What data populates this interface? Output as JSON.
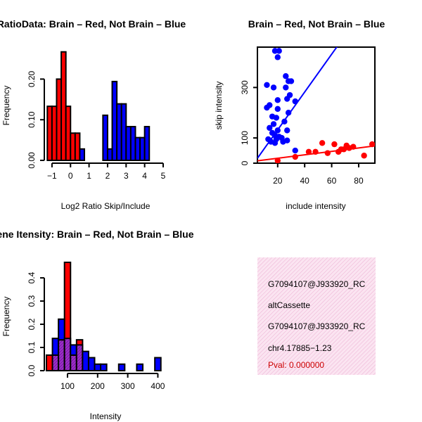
{
  "chart_data": [
    {
      "id": "ratio",
      "type": "bar",
      "title": "RatioData: Brain – Red, Not Brain – Blue",
      "xlabel": "Log2 Ratio Skip/Include",
      "ylabel": "Frequency",
      "xlim": [
        -1.3,
        5
      ],
      "ylim": [
        0,
        0.27
      ],
      "xticks": [
        -1,
        0,
        1,
        2,
        3,
        4,
        5
      ],
      "xtick_labels": [
        "−1",
        "0",
        "1",
        "2",
        "3",
        "4",
        "5"
      ],
      "yticks": [
        0,
        0.1,
        0.2
      ],
      "ytick_labels": [
        "0.00",
        "0.10",
        "0.20"
      ],
      "series": [
        {
          "name": "Brain",
          "color": "#ff0000",
          "bin_starts": [
            -1.25,
            -1.0,
            -0.75,
            -0.5,
            -0.25,
            0.0,
            0.25,
            0.5
          ],
          "bin_width": 0.25,
          "values": [
            0.133,
            0.133,
            0.2,
            0.267,
            0.133,
            0.067,
            0.067,
            0.0
          ]
        },
        {
          "name": "Not Brain",
          "color": "#0000ff",
          "bin_starts": [
            0.5,
            1.75,
            2.0,
            2.25,
            2.5,
            2.75,
            3.0,
            3.25,
            3.5,
            3.75,
            4.0,
            4.25,
            4.5
          ],
          "bin_width": 0.25,
          "values": [
            0.028,
            0.111,
            0.028,
            0.194,
            0.139,
            0.139,
            0.083,
            0.083,
            0.056,
            0.056,
            0.083,
            0.0,
            0.0
          ]
        }
      ]
    },
    {
      "id": "scatter",
      "type": "scatter",
      "title": "Brain – Red, Not Brain – Blue",
      "xlabel": "include intensity",
      "ylabel": "skip intensity",
      "xlim": [
        5,
        92
      ],
      "ylim": [
        0,
        460
      ],
      "xticks": [
        20,
        40,
        60,
        80
      ],
      "yticks": [
        0,
        100,
        300
      ],
      "series": [
        {
          "name": "Not Brain",
          "color": "#0000ff",
          "points": [
            [
              18,
              445
            ],
            [
              21,
              445
            ],
            [
              20,
              420
            ],
            [
              12,
              310
            ],
            [
              17,
              300
            ],
            [
              26,
              345
            ],
            [
              28,
              325
            ],
            [
              30,
              325
            ],
            [
              26,
              300
            ],
            [
              12,
              220
            ],
            [
              14,
              230
            ],
            [
              20,
              250
            ],
            [
              27,
              255
            ],
            [
              29,
              270
            ],
            [
              33,
              245
            ],
            [
              20,
              215
            ],
            [
              28,
              200
            ],
            [
              16,
              185
            ],
            [
              19,
              180
            ],
            [
              25,
              165
            ],
            [
              17,
              155
            ],
            [
              14,
              140
            ],
            [
              20,
              130
            ],
            [
              27,
              130
            ],
            [
              16,
              120
            ],
            [
              18,
              110
            ],
            [
              21,
              105
            ],
            [
              23,
              100
            ],
            [
              13,
              95
            ],
            [
              19,
              95
            ],
            [
              15,
              85
            ],
            [
              24,
              85
            ],
            [
              18,
              80
            ],
            [
              27,
              90
            ],
            [
              33,
              50
            ]
          ],
          "fit": {
            "slope": 7.5,
            "intercept": -18
          }
        },
        {
          "name": "Brain",
          "color": "#ff0000",
          "points": [
            [
              33,
              25
            ],
            [
              43,
              45
            ],
            [
              48,
              45
            ],
            [
              53,
              80
            ],
            [
              57,
              40
            ],
            [
              62,
              75
            ],
            [
              65,
              45
            ],
            [
              67,
              55
            ],
            [
              69,
              55
            ],
            [
              71,
              70
            ],
            [
              73,
              60
            ],
            [
              76,
              65
            ],
            [
              84,
              30
            ],
            [
              90,
              75
            ],
            [
              20,
              10
            ]
          ],
          "fit": {
            "slope": 0.68,
            "intercept": 6
          }
        }
      ]
    },
    {
      "id": "intensity",
      "type": "bar",
      "title": "Gene Itensity: Brain – Red, Not Brain – Blue",
      "xlabel": "Intensity",
      "ylabel": "Frequency",
      "xlim": [
        30,
        420
      ],
      "ylim": [
        0,
        0.47
      ],
      "xticks": [
        100,
        200,
        300,
        400
      ],
      "yticks": [
        0,
        0.1,
        0.2,
        0.3,
        0.4
      ],
      "ytick_labels": [
        "0.0",
        "0.1",
        "0.2",
        "0.3",
        "0.4"
      ],
      "series": [
        {
          "name": "Brain",
          "color": "#ff0000",
          "bin_starts": [
            30,
            50,
            70,
            90,
            110,
            130
          ],
          "bin_width": 20,
          "values": [
            0.067,
            0.067,
            0.133,
            0.467,
            0.067,
            0.133
          ]
        },
        {
          "name": "Not Brain",
          "color": "#0000ff",
          "bin_starts": [
            50,
            70,
            90,
            110,
            130,
            150,
            170,
            190,
            210,
            270,
            330,
            390
          ],
          "bin_width": 20,
          "values": [
            0.139,
            0.222,
            0.139,
            0.111,
            0.111,
            0.083,
            0.056,
            0.028,
            0.028,
            0.028,
            0.028,
            0.056
          ]
        }
      ]
    }
  ],
  "info_panel": {
    "lines": [
      "G7094107@J933920_RC",
      "altCassette",
      "G7094107@J933920_RC",
      "chr4.17885−1.23"
    ],
    "pval": "Pval: 0.000000",
    "pval_color": "#cc0000",
    "text_color": "#000000"
  }
}
